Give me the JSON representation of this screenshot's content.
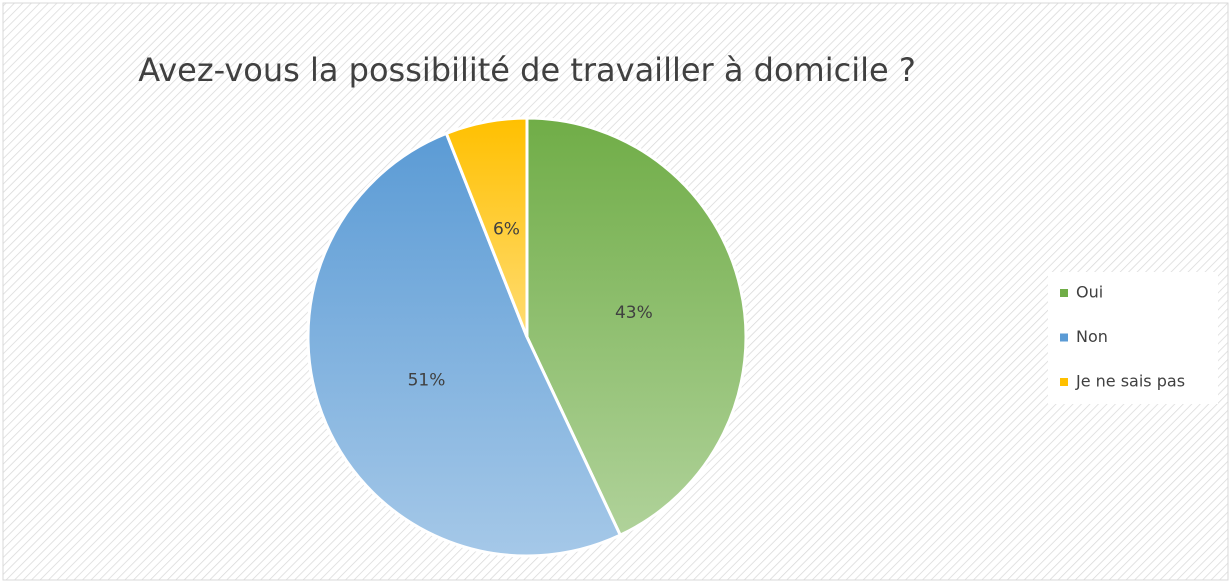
{
  "chart_data": {
    "type": "pie",
    "title": "Avez-vous la possibilité de travailler à domicile ?",
    "categories": [
      "Oui",
      "Non",
      "Je ne sais pas"
    ],
    "values": [
      43,
      51,
      6
    ],
    "value_labels": [
      "43%",
      "51%",
      "6%"
    ],
    "colors": [
      "#70ad47",
      "#5b9bd5",
      "#ffc000"
    ],
    "legend": "right"
  }
}
